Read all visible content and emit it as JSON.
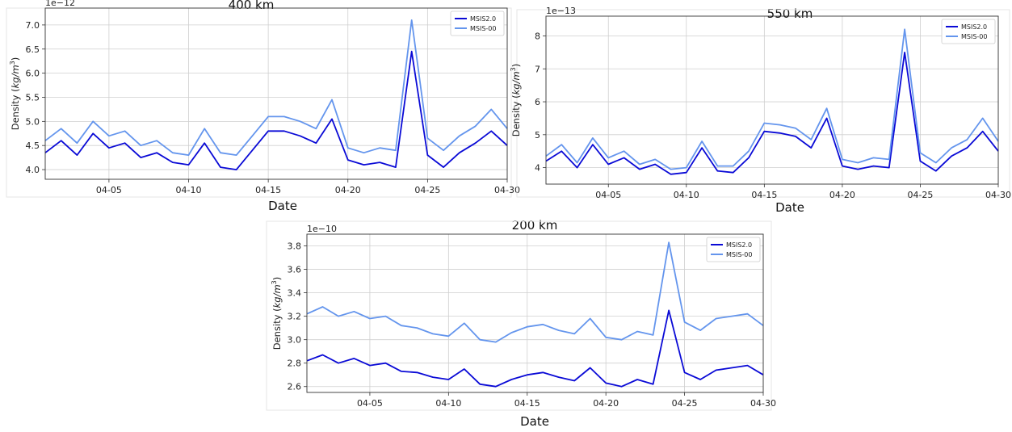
{
  "chart_data": [
    {
      "type": "line",
      "title": "400 km",
      "xlabel": "Date",
      "ylabel": "Density (kg/m³)",
      "ylabel_text": "Density (",
      "ylabel_unit": "kg/m",
      "ylabel_exp": "3",
      "ylabel_close": ")",
      "offset_text": "1e−12",
      "xlim": [
        "04-01",
        "04-30"
      ],
      "ylim": [
        3.8,
        7.35
      ],
      "xticks": [
        "04-05",
        "04-10",
        "04-15",
        "04-20",
        "04-25",
        "04-30"
      ],
      "yticks": [
        "4.0",
        "4.5",
        "5.0",
        "5.5",
        "6.0",
        "6.5",
        "7.0"
      ],
      "legend": "top-right",
      "grid": true,
      "x": [
        "04-01",
        "04-02",
        "04-03",
        "04-04",
        "04-05",
        "04-06",
        "04-07",
        "04-08",
        "04-09",
        "04-10",
        "04-11",
        "04-12",
        "04-13",
        "04-14",
        "04-15",
        "04-16",
        "04-17",
        "04-18",
        "04-19",
        "04-20",
        "04-21",
        "04-22",
        "04-23",
        "04-24",
        "04-25",
        "04-26",
        "04-27",
        "04-28",
        "04-29",
        "04-30"
      ],
      "series": [
        {
          "name": "MSIS2.0",
          "color": "#0a0ad6",
          "values": [
            4.35,
            4.6,
            4.3,
            4.75,
            4.45,
            4.55,
            4.25,
            4.35,
            4.15,
            4.1,
            4.55,
            4.05,
            4.0,
            4.4,
            4.8,
            4.8,
            4.7,
            4.55,
            5.05,
            4.2,
            4.1,
            4.15,
            4.05,
            6.45,
            4.3,
            4.05,
            4.35,
            4.55,
            4.8,
            4.5
          ]
        },
        {
          "name": "MSIS-00",
          "color": "#6495ed",
          "values": [
            4.6,
            4.85,
            4.55,
            5.0,
            4.7,
            4.8,
            4.5,
            4.6,
            4.35,
            4.3,
            4.85,
            4.35,
            4.3,
            4.7,
            5.1,
            5.1,
            5.0,
            4.85,
            5.45,
            4.45,
            4.35,
            4.45,
            4.4,
            7.1,
            4.65,
            4.4,
            4.7,
            4.9,
            5.25,
            4.85
          ]
        }
      ]
    },
    {
      "type": "line",
      "title": "550 km",
      "xlabel": "Date",
      "ylabel": "Density (kg/m³)",
      "ylabel_text": "Density (",
      "ylabel_unit": "kg/m",
      "ylabel_exp": "3",
      "ylabel_close": ")",
      "offset_text": "1e−13",
      "xlim": [
        "04-01",
        "04-30"
      ],
      "ylim": [
        3.5,
        8.6
      ],
      "xticks": [
        "04-05",
        "04-10",
        "04-15",
        "04-20",
        "04-25",
        "04-30"
      ],
      "yticks": [
        "4",
        "5",
        "6",
        "7",
        "8"
      ],
      "legend": "top-right",
      "grid": true,
      "x": [
        "04-01",
        "04-02",
        "04-03",
        "04-04",
        "04-05",
        "04-06",
        "04-07",
        "04-08",
        "04-09",
        "04-10",
        "04-11",
        "04-12",
        "04-13",
        "04-14",
        "04-15",
        "04-16",
        "04-17",
        "04-18",
        "04-19",
        "04-20",
        "04-21",
        "04-22",
        "04-23",
        "04-24",
        "04-25",
        "04-26",
        "04-27",
        "04-28",
        "04-29",
        "04-30"
      ],
      "series": [
        {
          "name": "MSIS2.0",
          "color": "#0a0ad6",
          "values": [
            4.2,
            4.5,
            4.0,
            4.7,
            4.1,
            4.3,
            3.95,
            4.1,
            3.8,
            3.85,
            4.6,
            3.9,
            3.85,
            4.3,
            5.1,
            5.05,
            4.95,
            4.6,
            5.5,
            4.05,
            3.95,
            4.05,
            4.0,
            7.5,
            4.2,
            3.9,
            4.35,
            4.6,
            5.1,
            4.5
          ]
        },
        {
          "name": "MSIS-00",
          "color": "#6495ed",
          "values": [
            4.35,
            4.7,
            4.15,
            4.9,
            4.3,
            4.5,
            4.1,
            4.25,
            3.95,
            4.0,
            4.8,
            4.05,
            4.05,
            4.5,
            5.35,
            5.3,
            5.2,
            4.85,
            5.8,
            4.25,
            4.15,
            4.3,
            4.25,
            8.2,
            4.45,
            4.15,
            4.6,
            4.85,
            5.5,
            4.8
          ]
        }
      ]
    },
    {
      "type": "line",
      "title": "200 km",
      "xlabel": "Date",
      "ylabel": "Density (kg/m³)",
      "ylabel_text": "Density (",
      "ylabel_unit": "kg/m",
      "ylabel_exp": "3",
      "ylabel_close": ")",
      "offset_text": "1e−10",
      "xlim": [
        "04-01",
        "04-30"
      ],
      "ylim": [
        2.55,
        3.9
      ],
      "xticks": [
        "04-05",
        "04-10",
        "04-15",
        "04-20",
        "04-25",
        "04-30"
      ],
      "yticks": [
        "2.6",
        "2.8",
        "3.0",
        "3.2",
        "3.4",
        "3.6",
        "3.8"
      ],
      "legend": "top-right",
      "grid": true,
      "x": [
        "04-01",
        "04-02",
        "04-03",
        "04-04",
        "04-05",
        "04-06",
        "04-07",
        "04-08",
        "04-09",
        "04-10",
        "04-11",
        "04-12",
        "04-13",
        "04-14",
        "04-15",
        "04-16",
        "04-17",
        "04-18",
        "04-19",
        "04-20",
        "04-21",
        "04-22",
        "04-23",
        "04-24",
        "04-25",
        "04-26",
        "04-27",
        "04-28",
        "04-29",
        "04-30"
      ],
      "series": [
        {
          "name": "MSIS2.0",
          "color": "#0a0ad6",
          "values": [
            2.82,
            2.87,
            2.8,
            2.84,
            2.78,
            2.8,
            2.73,
            2.72,
            2.68,
            2.66,
            2.75,
            2.62,
            2.6,
            2.66,
            2.7,
            2.72,
            2.68,
            2.65,
            2.76,
            2.63,
            2.6,
            2.66,
            2.62,
            3.25,
            2.72,
            2.66,
            2.74,
            2.76,
            2.78,
            2.7
          ]
        },
        {
          "name": "MSIS-00",
          "color": "#6495ed",
          "values": [
            3.22,
            3.28,
            3.2,
            3.24,
            3.18,
            3.2,
            3.12,
            3.1,
            3.05,
            3.03,
            3.14,
            3.0,
            2.98,
            3.06,
            3.11,
            3.13,
            3.08,
            3.05,
            3.18,
            3.02,
            3.0,
            3.07,
            3.04,
            3.83,
            3.15,
            3.08,
            3.18,
            3.2,
            3.22,
            3.12
          ]
        }
      ]
    }
  ]
}
